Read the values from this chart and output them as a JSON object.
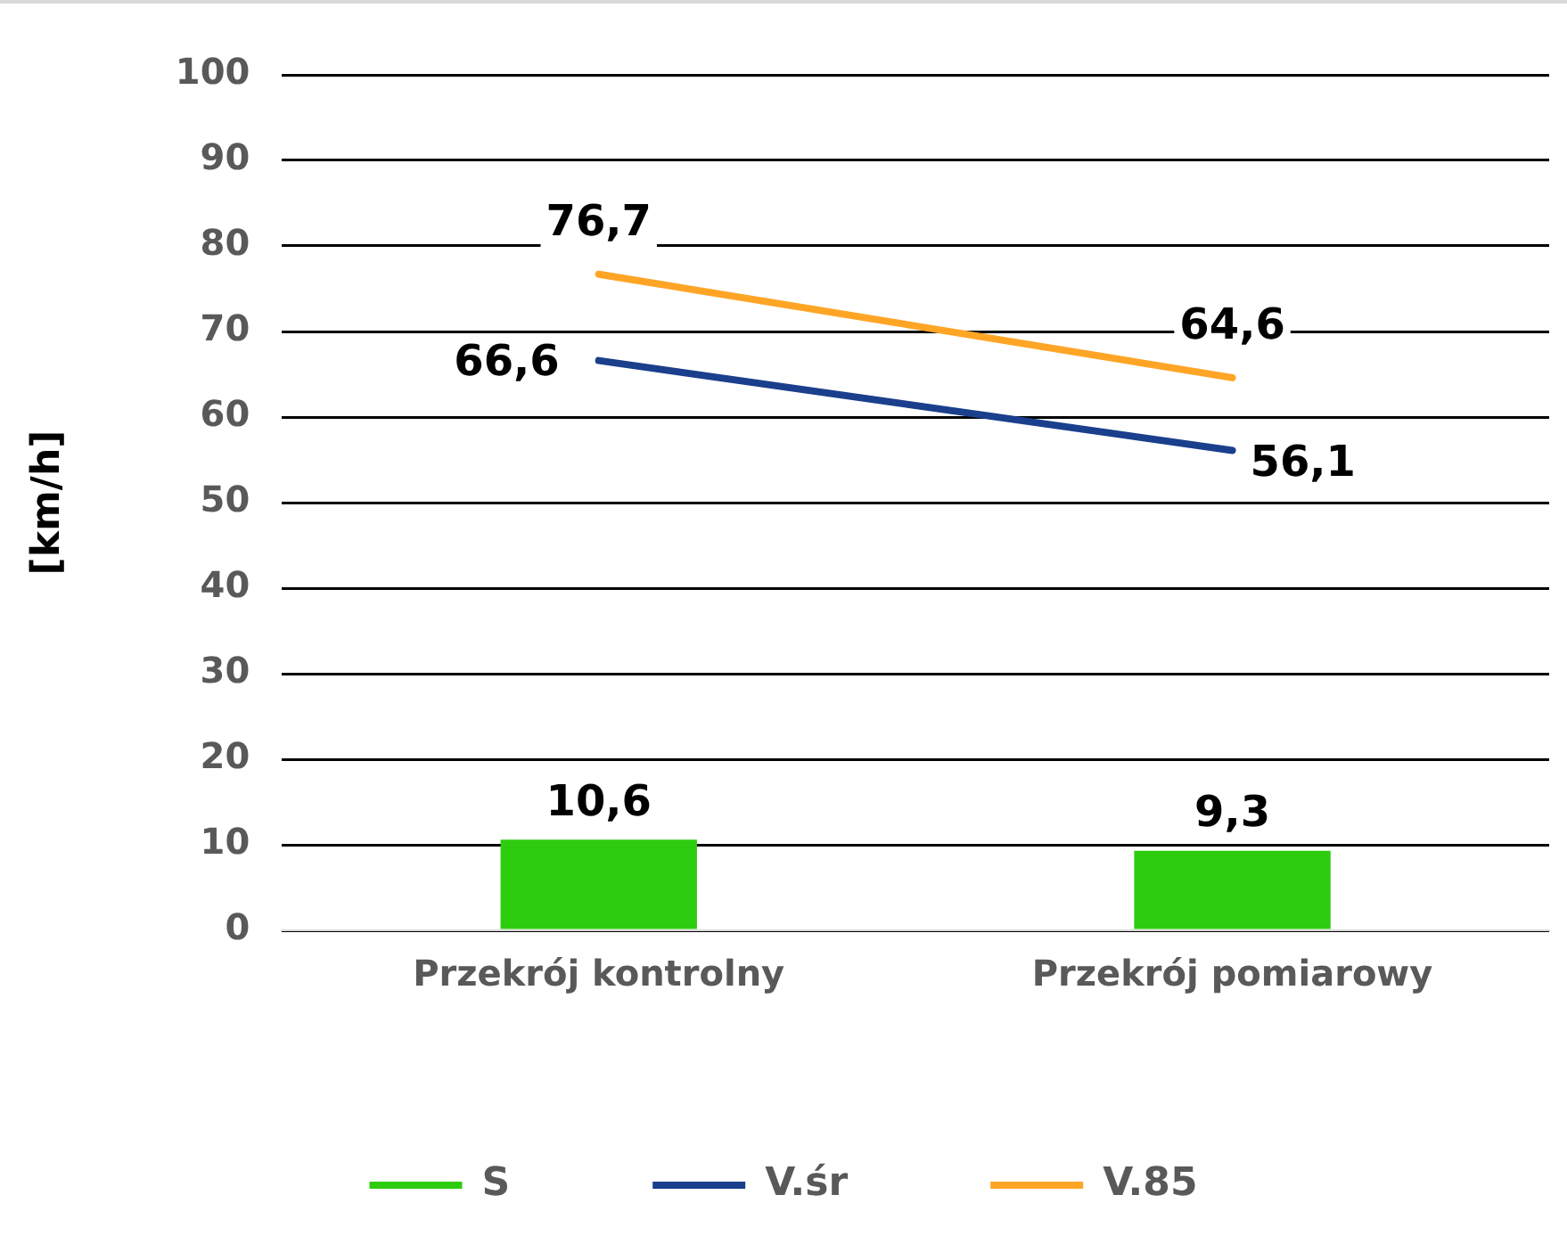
{
  "chart_data": {
    "type": "bar",
    "ylabel": "[km/h]",
    "categories": [
      "Przekrój kontrolny",
      "Przekrój pomiarowy"
    ],
    "series": [
      {
        "name": "S",
        "color": "#2ecc0f",
        "values": [
          10.6,
          9.3
        ],
        "value_labels": [
          "10,6",
          "9,3"
        ]
      },
      {
        "name": "V.śr",
        "type": "line",
        "color": "#1a3f8c",
        "values": [
          66.6,
          56.1
        ],
        "value_labels": [
          "66,6",
          "56,1"
        ]
      },
      {
        "name": "V.85",
        "type": "line",
        "color": "#ffa526",
        "values": [
          76.7,
          64.6
        ],
        "value_labels": [
          "76,7",
          "64,6"
        ]
      }
    ],
    "ylim": [
      0,
      100
    ],
    "yticks": [
      0,
      10,
      20,
      30,
      40,
      50,
      60,
      70,
      80,
      90,
      100
    ],
    "grid": "y",
    "legend": "bottom",
    "marker": "none",
    "line_style": "solid"
  }
}
